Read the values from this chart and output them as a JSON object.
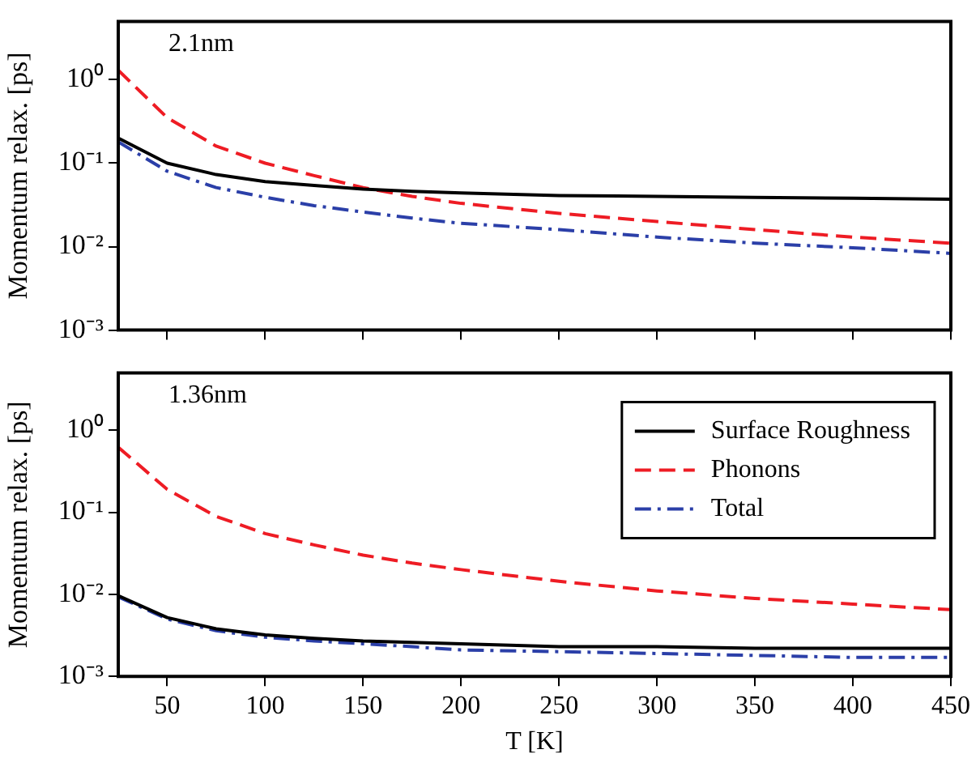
{
  "chart_data": [
    {
      "type": "line",
      "ylabel": "Momentum relax. [ps]",
      "annotations": [
        "2.1nm"
      ],
      "log": "y",
      "legend": false,
      "tick_labels": "y",
      "x": [
        25,
        50,
        75,
        100,
        125,
        150,
        175,
        200,
        250,
        300,
        350,
        400,
        450
      ],
      "xlim": [
        25,
        450
      ],
      "xticks": [
        50,
        100,
        150,
        200,
        250,
        300,
        350,
        400,
        450
      ],
      "ylim": [
        0.001,
        5
      ],
      "yticks": [
        {
          "value": 0.001,
          "label": "10⁻³"
        },
        {
          "value": 0.01,
          "label": "10⁻²"
        },
        {
          "value": 0.1,
          "label": "10⁻¹"
        },
        {
          "value": 1,
          "label": "10⁰"
        }
      ],
      "series": [
        {
          "color": "#000000",
          "line_style": "solid",
          "values": [
            0.2,
            0.1,
            0.073,
            0.06,
            0.054,
            0.049,
            0.046,
            0.044,
            0.041,
            0.04,
            0.039,
            0.038,
            0.037
          ]
        },
        {
          "color": "#ee1c24",
          "line_style": "dashed",
          "values": [
            1.3,
            0.35,
            0.16,
            0.1,
            0.071,
            0.051,
            0.04,
            0.033,
            0.025,
            0.02,
            0.016,
            0.013,
            0.011
          ]
        },
        {
          "color": "#2b3fa8",
          "line_style": "dashdot",
          "values": [
            0.18,
            0.08,
            0.051,
            0.039,
            0.031,
            0.026,
            0.022,
            0.019,
            0.016,
            0.013,
            0.011,
            0.0097,
            0.0083
          ]
        }
      ]
    },
    {
      "type": "line",
      "ylabel": "Momentum relax. [ps]",
      "xlabel": "T [K]",
      "annotations": [
        "1.36nm"
      ],
      "log": "y",
      "legend": "top right",
      "x": [
        25,
        50,
        75,
        100,
        125,
        150,
        175,
        200,
        250,
        300,
        350,
        400,
        450
      ],
      "xlim": [
        25,
        450
      ],
      "xticks": [
        50,
        100,
        150,
        200,
        250,
        300,
        350,
        400,
        450
      ],
      "ylim": [
        0.001,
        5
      ],
      "yticks": [
        {
          "value": 0.001,
          "label": "10⁻³"
        },
        {
          "value": 0.01,
          "label": "10⁻²"
        },
        {
          "value": 0.1,
          "label": "10⁻¹"
        },
        {
          "value": 1,
          "label": "10⁰"
        }
      ],
      "series": [
        {
          "name": "Surface Roughness",
          "color": "#000000",
          "line_style": "solid",
          "values": [
            0.0096,
            0.0052,
            0.0038,
            0.0032,
            0.0029,
            0.0027,
            0.0026,
            0.0025,
            0.0023,
            0.0023,
            0.0022,
            0.0022,
            0.0022
          ]
        },
        {
          "name": "Phonons",
          "color": "#ee1c24",
          "line_style": "dashed",
          "values": [
            0.62,
            0.19,
            0.089,
            0.055,
            0.04,
            0.03,
            0.024,
            0.02,
            0.0144,
            0.011,
            0.0089,
            0.0076,
            0.0065
          ]
        },
        {
          "name": "Total",
          "color": "#2b3fa8",
          "line_style": "dashdot",
          "values": [
            0.0093,
            0.005,
            0.0036,
            0.003,
            0.0027,
            0.0025,
            0.0023,
            0.0021,
            0.002,
            0.0019,
            0.0018,
            0.0017,
            0.0017
          ]
        }
      ]
    }
  ]
}
